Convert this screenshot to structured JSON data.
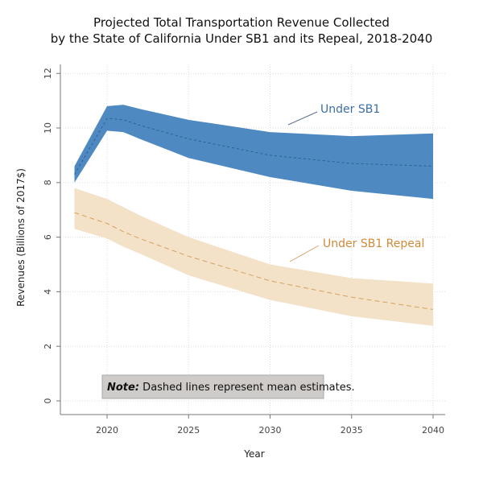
{
  "chart_data": {
    "type": "area",
    "title_line1": "Projected Total Transportation Revenue Collected",
    "title_line2": "by the State of California Under SB1 and its Repeal, 2018-2040",
    "xlabel": "Year",
    "ylabel": "Revenues (Billions of 2017$)",
    "xlim": [
      2017,
      2041
    ],
    "ylim": [
      -0.5,
      12.3
    ],
    "xticks": [
      "2020",
      "2025",
      "2030",
      "2035",
      "2040"
    ],
    "yticks": [
      "0",
      "2",
      "4",
      "6",
      "8",
      "10",
      "12"
    ],
    "grid": true,
    "x": [
      2018,
      2020,
      2021,
      2022,
      2025,
      2030,
      2035,
      2040
    ],
    "series": [
      {
        "name": "Under SB1",
        "color": "#4f89c2",
        "line_color": "#2f5f8f",
        "upper": [
          8.6,
          10.8,
          10.85,
          10.7,
          10.3,
          9.85,
          9.7,
          9.8
        ],
        "mean": [
          8.3,
          10.35,
          10.3,
          10.1,
          9.6,
          9.0,
          8.7,
          8.6
        ],
        "lower": [
          8.0,
          9.9,
          9.85,
          9.6,
          8.9,
          8.2,
          7.7,
          7.4
        ]
      },
      {
        "name": "Under SB1 Repeal",
        "color": "#f3e1c8",
        "line_color": "#d7a25e",
        "upper": [
          7.8,
          7.4,
          7.1,
          6.8,
          6.0,
          5.0,
          4.5,
          4.3
        ],
        "mean": [
          6.9,
          6.5,
          6.2,
          5.95,
          5.3,
          4.4,
          3.8,
          3.35
        ],
        "lower": [
          6.3,
          5.95,
          5.65,
          5.4,
          4.6,
          3.7,
          3.1,
          2.75
        ]
      }
    ],
    "annotations": {
      "sb1_label": "Under SB1",
      "repeal_label": "Under SB1 Repeal",
      "sb1_label_color": "#3a6ea8",
      "repeal_label_color": "#d08a3a",
      "note_bold": "Note:",
      "note_text": " Dashed lines represent mean estimates."
    }
  }
}
